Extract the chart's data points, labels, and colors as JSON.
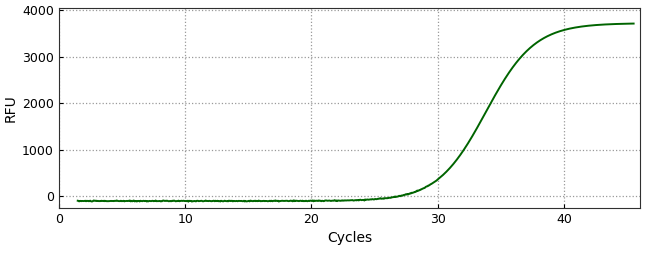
{
  "title": "",
  "xlabel": "Cycles",
  "ylabel": "RFU",
  "line_color": "#006400",
  "line_width": 1.4,
  "background_color": "#ffffff",
  "grid_color": "#808080",
  "xlim": [
    0,
    46
  ],
  "ylim": [
    -250,
    4050
  ],
  "xticks": [
    0,
    10,
    20,
    30,
    40
  ],
  "yticks": [
    0,
    1000,
    2000,
    3000,
    4000
  ],
  "sigmoid_L": 3820,
  "sigmoid_k": 0.52,
  "sigmoid_x0": 33.8,
  "x_start": 1.5,
  "x_end": 45.5,
  "baseline": -100
}
